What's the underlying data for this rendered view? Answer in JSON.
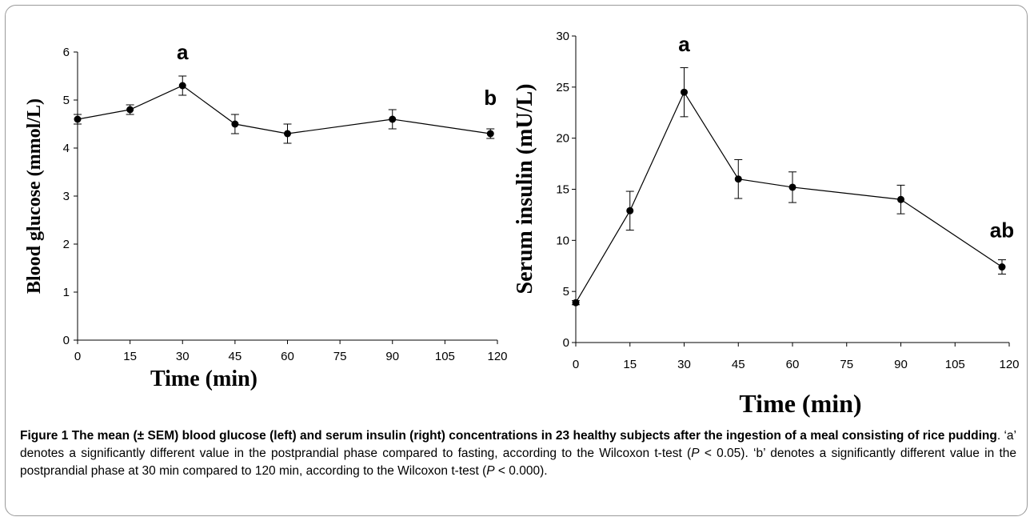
{
  "chart_data": [
    {
      "type": "line",
      "ylabel": "Blood glucose (mmol/L)",
      "xlabel": "Time (min)",
      "xlim": [
        0,
        120
      ],
      "ylim": [
        0,
        6
      ],
      "xticks": [
        0,
        15,
        30,
        45,
        60,
        75,
        90,
        105,
        120
      ],
      "yticks": [
        0,
        1,
        2,
        3,
        4,
        5,
        6
      ],
      "x": [
        0,
        15,
        30,
        45,
        60,
        90,
        118
      ],
      "values": [
        4.6,
        4.8,
        5.3,
        4.5,
        4.3,
        4.6,
        4.3
      ],
      "errors": [
        0.1,
        0.1,
        0.2,
        0.2,
        0.2,
        0.2,
        0.1
      ],
      "grid": false,
      "annotations": [
        {
          "text": "a",
          "x": 30,
          "y": 5.85
        },
        {
          "text": "b",
          "x": 118,
          "y": 4.9
        }
      ]
    },
    {
      "type": "line",
      "ylabel": "Serum insulin (mU/L)",
      "xlabel": "Time (min)",
      "xlim": [
        0,
        120
      ],
      "ylim": [
        0,
        30
      ],
      "xticks": [
        0,
        15,
        30,
        45,
        60,
        75,
        90,
        105,
        120
      ],
      "yticks": [
        0,
        5,
        10,
        15,
        20,
        25,
        30
      ],
      "x": [
        0,
        15,
        30,
        45,
        60,
        90,
        118
      ],
      "values": [
        3.9,
        12.9,
        24.5,
        16.0,
        15.2,
        14.0,
        7.4
      ],
      "errors": [
        0.2,
        1.9,
        2.4,
        1.9,
        1.5,
        1.4,
        0.7
      ],
      "grid": false,
      "annotations": [
        {
          "text": "a",
          "x": 30,
          "y": 28.5
        },
        {
          "text": "ab",
          "x": 118,
          "y": 10.3
        }
      ]
    }
  ],
  "caption": {
    "title": "Figure 1 The mean (± SEM) blood glucose (left) and serum insulin (right) concentrations in 23 healthy subjects after the ingestion of a meal consisting of rice pudding",
    "text_1": ". ‘a’ denotes a significantly different value in the postprandial phase compared to fasting, according to the Wilcoxon t-test (",
    "p_symbol": "P",
    "text_2": " < 0.05). ‘b’ denotes a significantly different value in the postprandial phase at 30 min compared to 120 min, according to the Wilcoxon t-test (",
    "text_3": " < 0.000)."
  }
}
